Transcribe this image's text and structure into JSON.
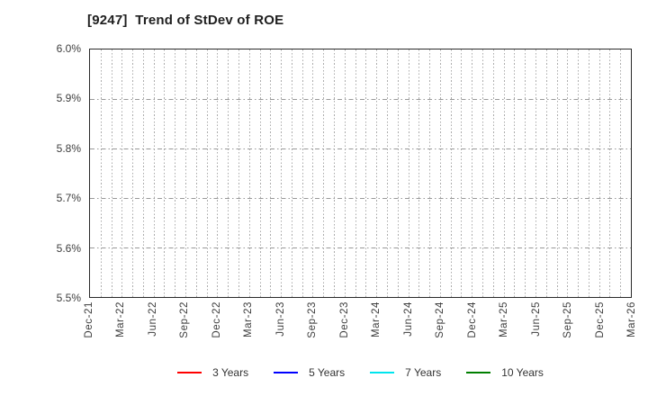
{
  "figure": {
    "background": "#ffffff"
  },
  "chart_data": {
    "type": "line",
    "title": "[9247]  Trend of StDev of ROE",
    "xlabel": "",
    "ylabel": "",
    "ylim": [
      5.5,
      6.0
    ],
    "y_tick_step": 0.1,
    "y_tick_labels": [
      "6.0%",
      "5.9%",
      "5.8%",
      "5.7%",
      "5.6%",
      "5.5%"
    ],
    "x_tick_labels": [
      "Dec-21",
      "Mar-22",
      "Jun-22",
      "Sep-22",
      "Dec-22",
      "Mar-23",
      "Jun-23",
      "Sep-23",
      "Dec-23",
      "Mar-24",
      "Jun-24",
      "Sep-24",
      "Dec-24",
      "Mar-25",
      "Jun-25",
      "Sep-25",
      "Dec-25",
      "Mar-26"
    ],
    "x_minor_gridline_count": 51,
    "grid": {
      "horizontal_style": "dash-dot",
      "vertical_style": "dotted",
      "horizontal_color": "#999999",
      "vertical_color": "#ababab"
    },
    "axis_border_color": "#2a2a2a",
    "tick_label_color": "#3d3d3d",
    "title_color": "#1f1f1f",
    "legend_position": "bottom-center",
    "series": [
      {
        "name": "3 Years",
        "color": "#ff0000",
        "values": []
      },
      {
        "name": "5 Years",
        "color": "#0000ff",
        "values": []
      },
      {
        "name": "7 Years",
        "color": "#00e5ee",
        "values": []
      },
      {
        "name": "10 Years",
        "color": "#007f00",
        "values": []
      }
    ]
  }
}
